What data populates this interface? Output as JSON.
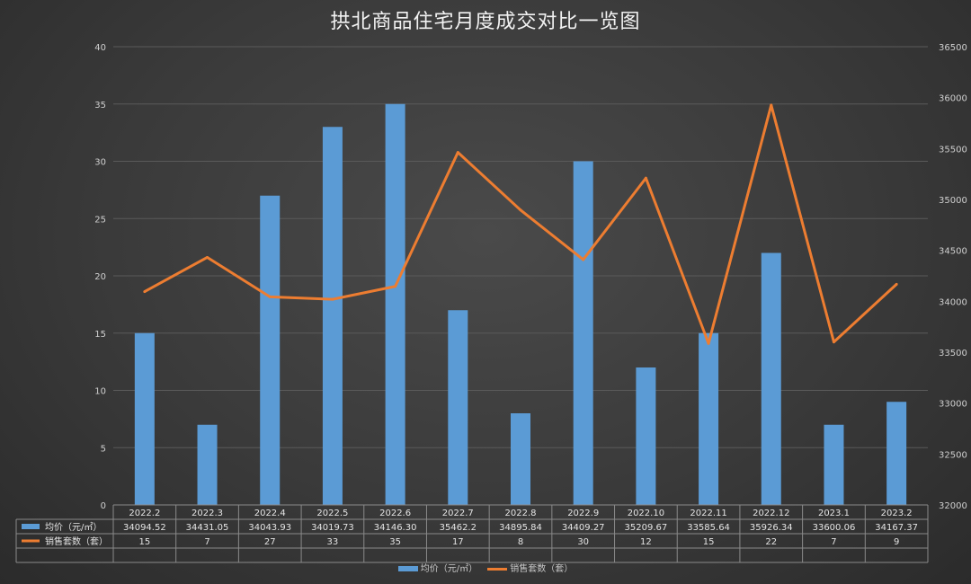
{
  "chart_data": {
    "type": "bar",
    "title": "拱北商品住宅月度成交对比一览图",
    "categories": [
      "2022.2",
      "2022.3",
      "2022.4",
      "2022.5",
      "2022.6",
      "2022.7",
      "2022.8",
      "2022.9",
      "2022.10",
      "2022.11",
      "2022.12",
      "2023.1",
      "2023.2"
    ],
    "series": [
      {
        "name": "均价（元/㎡）",
        "type": "bar",
        "axis": "left",
        "values": [
          15,
          7,
          27,
          33,
          35,
          17,
          8,
          30,
          12,
          15,
          22,
          7,
          9
        ],
        "display_values": [
          "34094.52",
          "34431.05",
          "34043.93",
          "34019.73",
          "34146.30",
          "35462.2",
          "34895.84",
          "34409.27",
          "35209.67",
          "33585.64",
          "35926.34",
          "33600.06",
          "34167.37"
        ],
        "color": "#5b9bd5"
      },
      {
        "name": "销售套数（套）",
        "type": "line",
        "axis": "right",
        "values": [
          34094.52,
          34431.05,
          34043.93,
          34019.73,
          34146.3,
          35462.2,
          34895.84,
          34409.27,
          35209.67,
          33585.64,
          35926.34,
          33600.06,
          34167.37
        ],
        "display_values": [
          "15",
          "7",
          "27",
          "33",
          "35",
          "17",
          "8",
          "30",
          "12",
          "15",
          "22",
          "7",
          "9"
        ],
        "color": "#ed7d31"
      }
    ],
    "left_axis": {
      "min": 0,
      "max": 40,
      "ticks": [
        "0",
        "5",
        "10",
        "15",
        "20",
        "25",
        "30",
        "35",
        "40"
      ]
    },
    "right_axis": {
      "min": 32000,
      "max": 36500,
      "ticks": [
        "32000",
        "32500",
        "33000",
        "33500",
        "34000",
        "34500",
        "35000",
        "35500",
        "36000",
        "36500"
      ]
    },
    "legend": {
      "position": "bottom"
    },
    "grid": true
  }
}
